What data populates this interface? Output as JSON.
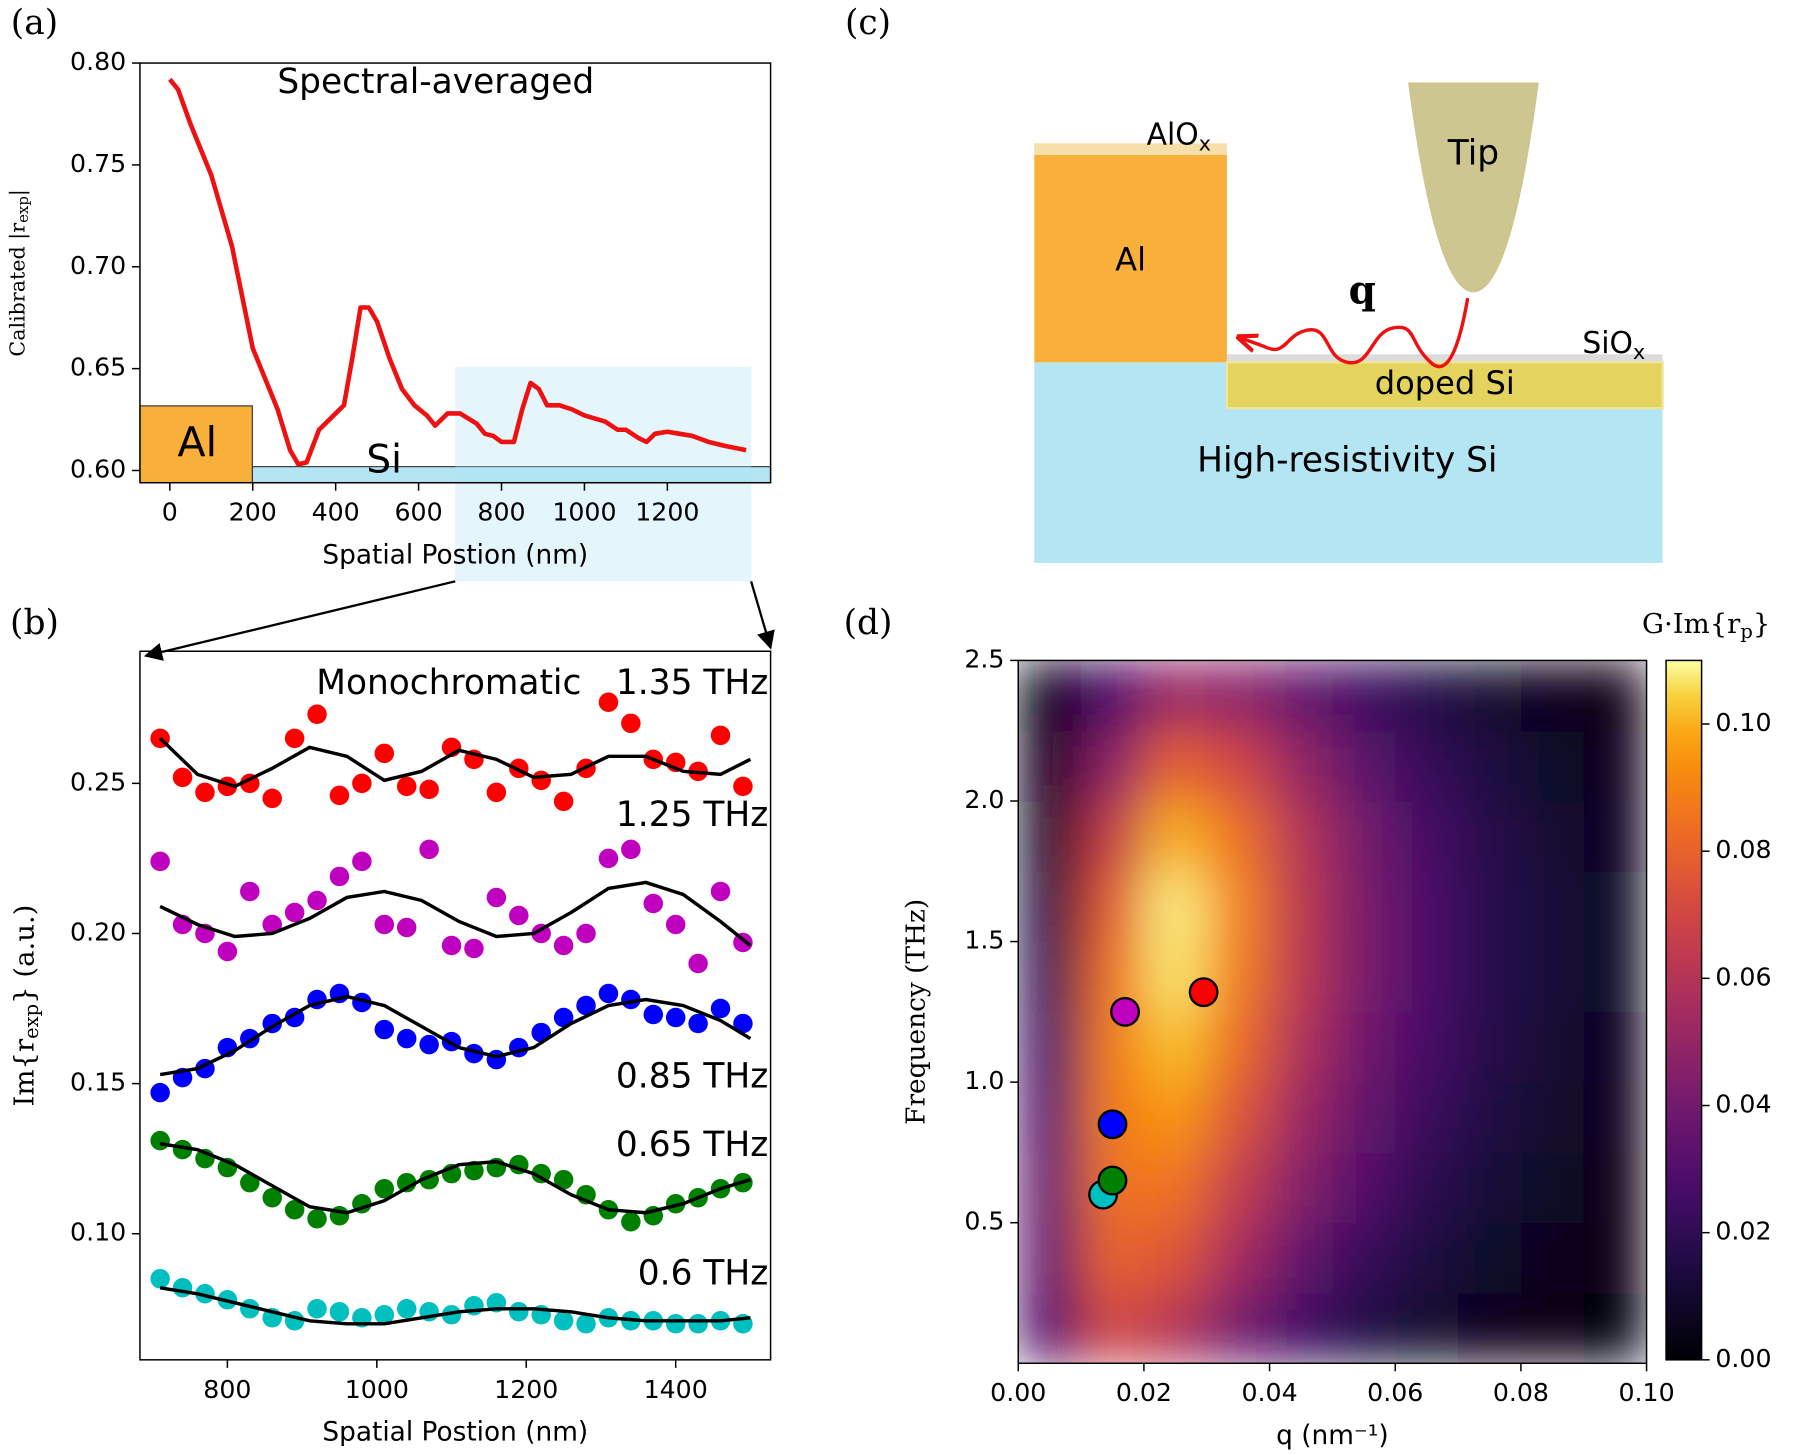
{
  "chart_data": [
    {
      "type": "line",
      "panel": "(a)",
      "title": "Spectral-averaged",
      "xlabel": "Spatial Postion (nm)",
      "ylabel_parts": [
        "Calibrated |r",
        "exp",
        "|"
      ],
      "region_labels": [
        "Al",
        "Si"
      ],
      "x": [
        0,
        20,
        50,
        100,
        150,
        200,
        230,
        260,
        290,
        310,
        330,
        360,
        400,
        420,
        440,
        460,
        480,
        500,
        530,
        560,
        590,
        620,
        640,
        670,
        700,
        740,
        760,
        780,
        800,
        830,
        850,
        870,
        890,
        910,
        940,
        970,
        1000,
        1050,
        1080,
        1100,
        1130,
        1150,
        1170,
        1200,
        1230,
        1260,
        1300,
        1340,
        1390
      ],
      "values": [
        0.792,
        0.787,
        0.77,
        0.745,
        0.71,
        0.66,
        0.645,
        0.63,
        0.61,
        0.603,
        0.604,
        0.62,
        0.628,
        0.632,
        0.655,
        0.68,
        0.68,
        0.673,
        0.655,
        0.64,
        0.632,
        0.627,
        0.622,
        0.628,
        0.628,
        0.623,
        0.618,
        0.617,
        0.614,
        0.614,
        0.63,
        0.643,
        0.64,
        0.632,
        0.632,
        0.63,
        0.627,
        0.624,
        0.62,
        0.62,
        0.616,
        0.614,
        0.618,
        0.619,
        0.618,
        0.617,
        0.614,
        0.612,
        0.61
      ],
      "color": "#ee1111",
      "xlim": [
        -72,
        1449
      ],
      "ylim": [
        0.594,
        0.8
      ],
      "xticks": [
        0,
        200,
        400,
        600,
        800,
        1000,
        1200
      ],
      "yticks": [
        {
          "value": 0.6,
          "label": "0.60"
        },
        0.65,
        {
          "value": 0.7,
          "label": "0.70"
        },
        0.75,
        {
          "value": 0.8,
          "label": "0.80"
        }
      ]
    },
    {
      "type": "scatter",
      "panel": "(b)",
      "title": "Monochromatic",
      "xlabel": "Spatial Postion (nm)",
      "ylabel_parts": [
        "Im{r",
        "exp",
        "} (a.u.)"
      ],
      "fit_color": "#000000",
      "x": [
        710,
        740,
        770,
        800,
        830,
        860,
        890,
        920,
        950,
        980,
        1010,
        1040,
        1070,
        1100,
        1130,
        1160,
        1190,
        1220,
        1250,
        1280,
        1310,
        1340,
        1370,
        1400,
        1430,
        1460,
        1490
      ],
      "x_fit": [
        710,
        760,
        810,
        860,
        910,
        960,
        1010,
        1060,
        1110,
        1160,
        1210,
        1260,
        1310,
        1360,
        1410,
        1460,
        1500
      ],
      "series": [
        {
          "name": "1.35 THz",
          "color": "#ff0000",
          "values": [
            0.265,
            0.252,
            0.247,
            0.249,
            0.25,
            0.245,
            0.265,
            0.273,
            0.246,
            0.25,
            0.26,
            0.249,
            0.248,
            0.262,
            0.258,
            0.247,
            0.255,
            0.251,
            0.244,
            0.255,
            0.277,
            0.27,
            0.258,
            0.257,
            0.254,
            0.266,
            0.249
          ],
          "fit": [
            0.265,
            0.253,
            0.249,
            0.255,
            0.262,
            0.259,
            0.251,
            0.254,
            0.261,
            0.258,
            0.252,
            0.253,
            0.259,
            0.259,
            0.254,
            0.253,
            0.258
          ]
        },
        {
          "name": "1.25 THz",
          "color": "#bf00bf",
          "values": [
            0.224,
            0.203,
            0.2,
            0.194,
            0.214,
            0.203,
            0.207,
            0.211,
            0.219,
            0.224,
            0.203,
            0.202,
            0.228,
            0.196,
            0.195,
            0.212,
            0.206,
            0.2,
            0.196,
            0.2,
            0.225,
            0.228,
            0.21,
            0.203,
            0.19,
            0.214,
            0.197
          ],
          "fit": [
            0.209,
            0.203,
            0.199,
            0.2,
            0.205,
            0.212,
            0.214,
            0.211,
            0.204,
            0.199,
            0.2,
            0.207,
            0.215,
            0.217,
            0.213,
            0.204,
            0.196
          ]
        },
        {
          "name": "0.85 THz",
          "color": "#0000ff",
          "values": [
            0.147,
            0.152,
            0.155,
            0.162,
            0.165,
            0.17,
            0.172,
            0.178,
            0.18,
            0.177,
            0.168,
            0.165,
            0.163,
            0.164,
            0.16,
            0.158,
            0.162,
            0.167,
            0.172,
            0.176,
            0.18,
            0.178,
            0.173,
            0.172,
            0.17,
            0.175,
            0.17
          ],
          "fit": [
            0.153,
            0.155,
            0.161,
            0.169,
            0.176,
            0.179,
            0.176,
            0.169,
            0.162,
            0.159,
            0.162,
            0.17,
            0.176,
            0.178,
            0.176,
            0.171,
            0.165
          ]
        },
        {
          "name": "0.65 THz",
          "color": "#008000",
          "values": [
            0.131,
            0.128,
            0.125,
            0.122,
            0.117,
            0.112,
            0.108,
            0.105,
            0.106,
            0.11,
            0.115,
            0.117,
            0.118,
            0.12,
            0.121,
            0.122,
            0.123,
            0.12,
            0.118,
            0.113,
            0.108,
            0.104,
            0.106,
            0.11,
            0.112,
            0.115,
            0.117
          ],
          "fit": [
            0.13,
            0.128,
            0.123,
            0.116,
            0.109,
            0.107,
            0.111,
            0.118,
            0.123,
            0.124,
            0.12,
            0.113,
            0.108,
            0.107,
            0.11,
            0.115,
            0.118
          ]
        },
        {
          "name": "0.6 THz",
          "color": "#00bfbf",
          "values": [
            0.085,
            0.082,
            0.08,
            0.078,
            0.075,
            0.072,
            0.071,
            0.075,
            0.074,
            0.072,
            0.073,
            0.075,
            0.074,
            0.073,
            0.076,
            0.077,
            0.074,
            0.073,
            0.071,
            0.07,
            0.072,
            0.071,
            0.071,
            0.07,
            0.07,
            0.071,
            0.07
          ],
          "fit": [
            0.082,
            0.08,
            0.077,
            0.074,
            0.071,
            0.07,
            0.07,
            0.072,
            0.074,
            0.075,
            0.075,
            0.074,
            0.072,
            0.071,
            0.071,
            0.071,
            0.072
          ]
        }
      ],
      "xlim": [
        683,
        1527
      ],
      "ylim": [
        0.058,
        0.294
      ],
      "xticks": [
        800,
        1000,
        1200,
        1400
      ],
      "yticks": [
        {
          "value": 0.1,
          "label": "0.10"
        },
        0.15,
        {
          "value": 0.2,
          "label": "0.20"
        },
        0.25
      ]
    },
    {
      "type": "diagram",
      "panel": "(c)",
      "labels": {
        "alox": [
          "AlO",
          "x"
        ],
        "tip": "Tip",
        "al": "Al",
        "q": "q",
        "siox": [
          "SiO",
          "x"
        ],
        "doped": "doped Si",
        "substrate": "High-resistivity Si"
      }
    },
    {
      "type": "heatmap",
      "panel": "(d)",
      "xlabel": "q (nm⁻¹)",
      "ylabel": "Frequency (THz)",
      "colorbar_label_parts": [
        "G·Im{r",
        "p",
        "}"
      ],
      "colormap": "inferno",
      "x_bins": [
        0,
        0.01,
        0.02,
        0.03,
        0.04,
        0.05,
        0.06,
        0.07,
        0.08,
        0.09,
        0.1
      ],
      "y_bins": [
        0,
        0.25,
        0.5,
        0.75,
        1,
        1.25,
        1.5,
        1.75,
        2,
        2.25,
        2.5
      ],
      "z": [
        [
          0.03,
          0.07,
          0.06,
          0.04,
          0.025,
          0.015,
          0.01,
          0.006,
          0.004,
          0.003
        ],
        [
          0.035,
          0.08,
          0.075,
          0.055,
          0.035,
          0.022,
          0.014,
          0.009,
          0.006,
          0.004
        ],
        [
          0.035,
          0.085,
          0.085,
          0.065,
          0.045,
          0.03,
          0.019,
          0.012,
          0.008,
          0.005
        ],
        [
          0.03,
          0.088,
          0.095,
          0.075,
          0.052,
          0.035,
          0.023,
          0.015,
          0.01,
          0.006
        ],
        [
          0.025,
          0.088,
          0.102,
          0.083,
          0.058,
          0.039,
          0.026,
          0.017,
          0.011,
          0.007
        ],
        [
          0.02,
          0.085,
          0.107,
          0.088,
          0.062,
          0.042,
          0.028,
          0.018,
          0.012,
          0.008
        ],
        [
          0.015,
          0.078,
          0.108,
          0.09,
          0.063,
          0.042,
          0.028,
          0.018,
          0.012,
          0.008
        ],
        [
          0.01,
          0.066,
          0.1,
          0.085,
          0.06,
          0.04,
          0.026,
          0.017,
          0.011,
          0.007
        ],
        [
          0.006,
          0.048,
          0.08,
          0.07,
          0.05,
          0.033,
          0.022,
          0.014,
          0.009,
          0.006
        ],
        [
          0.003,
          0.028,
          0.052,
          0.048,
          0.035,
          0.024,
          0.016,
          0.01,
          0.006,
          0.004
        ]
      ],
      "points": {
        "x": [
          0.0135,
          0.015,
          0.015,
          0.017,
          0.0295
        ],
        "y": [
          0.6,
          0.65,
          0.85,
          1.25,
          1.32
        ],
        "colors": [
          "#00bfbf",
          "#008000",
          "#0000ff",
          "#bf00bf",
          "#ff0000"
        ]
      },
      "xlim": [
        0,
        0.1
      ],
      "ylim": [
        0,
        2.5
      ],
      "clim": [
        0,
        0.11
      ],
      "xticks": [
        {
          "value": 0,
          "label": "0.00"
        },
        0.02,
        0.04,
        0.06,
        0.08,
        {
          "value": 0.1,
          "label": "0.10"
        }
      ],
      "yticks": [
        0.5,
        {
          "value": 1,
          "label": "1.0"
        },
        1.5,
        {
          "value": 2,
          "label": "2.0"
        },
        2.5
      ],
      "cticks": [
        {
          "value": 0,
          "label": "0.00"
        },
        0.02,
        0.04,
        0.06,
        0.08,
        {
          "value": 0.1,
          "label": "0.10"
        }
      ]
    }
  ]
}
